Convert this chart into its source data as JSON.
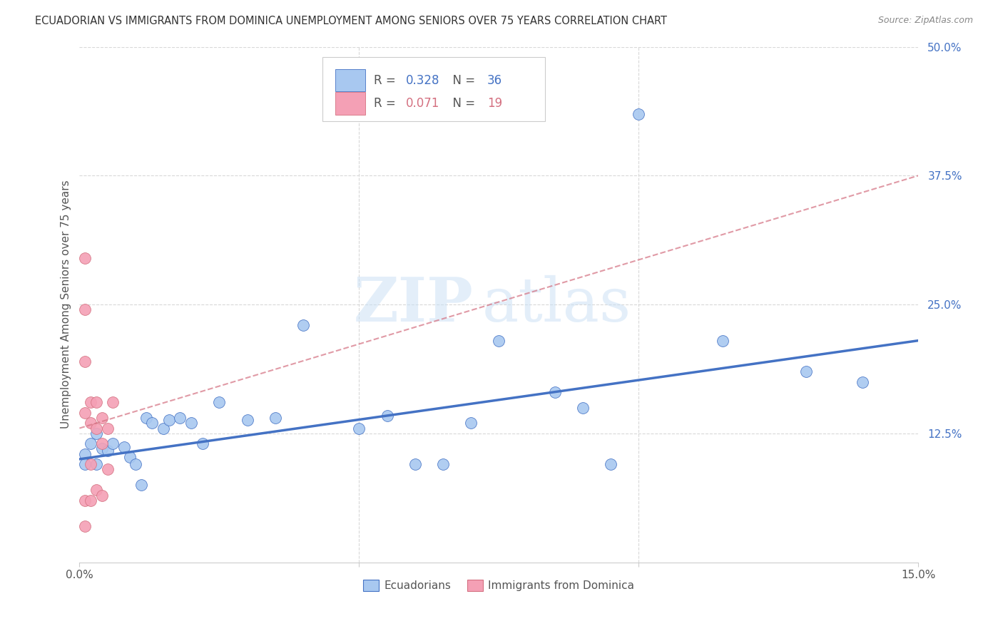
{
  "title": "ECUADORIAN VS IMMIGRANTS FROM DOMINICA UNEMPLOYMENT AMONG SENIORS OVER 75 YEARS CORRELATION CHART",
  "source": "Source: ZipAtlas.com",
  "ylabel": "Unemployment Among Seniors over 75 years",
  "xlim": [
    0.0,
    0.15
  ],
  "ylim": [
    0.0,
    0.5
  ],
  "blue_scatter_x": [
    0.001,
    0.001,
    0.002,
    0.003,
    0.003,
    0.004,
    0.005,
    0.006,
    0.008,
    0.009,
    0.01,
    0.011,
    0.012,
    0.013,
    0.015,
    0.016,
    0.018,
    0.02,
    0.022,
    0.025,
    0.03,
    0.035,
    0.04,
    0.05,
    0.055,
    0.06,
    0.065,
    0.07,
    0.075,
    0.085,
    0.09,
    0.095,
    0.1,
    0.115,
    0.13,
    0.14
  ],
  "blue_scatter_y": [
    0.105,
    0.095,
    0.115,
    0.125,
    0.095,
    0.11,
    0.108,
    0.115,
    0.112,
    0.102,
    0.095,
    0.075,
    0.14,
    0.135,
    0.13,
    0.138,
    0.14,
    0.135,
    0.115,
    0.155,
    0.138,
    0.14,
    0.23,
    0.13,
    0.142,
    0.095,
    0.095,
    0.135,
    0.215,
    0.165,
    0.15,
    0.095,
    0.435,
    0.215,
    0.185,
    0.175
  ],
  "pink_scatter_x": [
    0.001,
    0.001,
    0.001,
    0.001,
    0.001,
    0.001,
    0.002,
    0.002,
    0.002,
    0.002,
    0.003,
    0.003,
    0.003,
    0.004,
    0.004,
    0.004,
    0.005,
    0.005,
    0.006
  ],
  "pink_scatter_y": [
    0.295,
    0.245,
    0.195,
    0.145,
    0.06,
    0.035,
    0.155,
    0.135,
    0.095,
    0.06,
    0.155,
    0.13,
    0.07,
    0.14,
    0.115,
    0.065,
    0.13,
    0.09,
    0.155
  ],
  "blue_color": "#a8c8f0",
  "pink_color": "#f4a0b5",
  "blue_line_color": "#4472c4",
  "pink_line_color": "#d47080",
  "blue_R": 0.328,
  "blue_N": 36,
  "pink_R": 0.071,
  "pink_N": 19,
  "legend_labels": [
    "Ecuadorians",
    "Immigrants from Dominica"
  ],
  "watermark_zip": "ZIP",
  "watermark_atlas": "atlas",
  "background_color": "#ffffff",
  "grid_color": "#d8d8d8"
}
